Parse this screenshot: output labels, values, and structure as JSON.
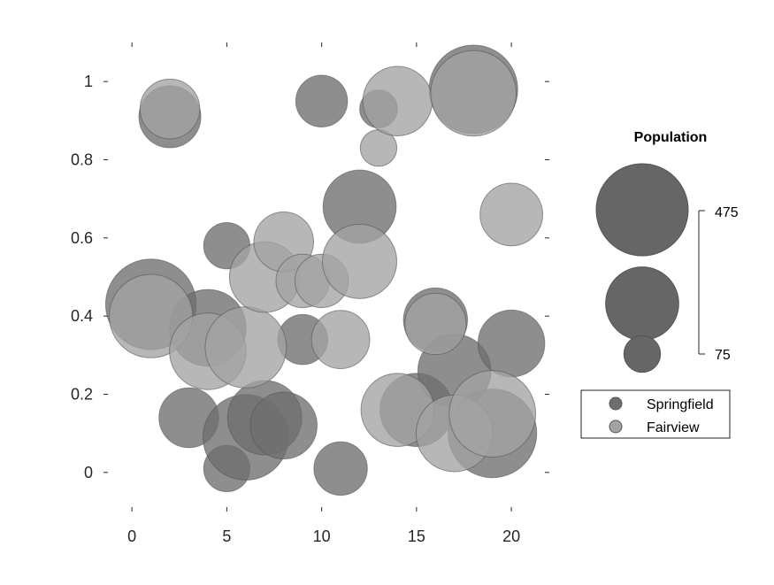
{
  "chart_data": {
    "type": "scatter",
    "subtype": "bubble",
    "title": "",
    "xlabel": "",
    "ylabel": "",
    "xlim": [
      -1.5,
      22
    ],
    "ylim": [
      -0.1,
      1.1
    ],
    "xticks": [
      0,
      5,
      10,
      15,
      20
    ],
    "yticks": [
      0,
      0.2,
      0.4,
      0.6,
      0.8,
      1
    ],
    "xtick_labels": [
      "0",
      "5",
      "10",
      "15",
      "20"
    ],
    "ytick_labels": [
      "0",
      "0.2",
      "0.4",
      "0.6",
      "0.8",
      "1"
    ],
    "grid": false,
    "size_legend": {
      "title": "Population",
      "max_label": "475",
      "min_label": "75",
      "max_value": 475,
      "min_value": 75,
      "sample_sizes": [
        475,
        300,
        75
      ]
    },
    "legend": {
      "position": "right",
      "entries": [
        "Springfield",
        "Fairview"
      ]
    },
    "series": [
      {
        "name": "Springfield",
        "color": "#6e6e6e",
        "points": [
          {
            "x": 1,
            "y": 0.43,
            "size": 460
          },
          {
            "x": 2,
            "y": 0.91,
            "size": 215
          },
          {
            "x": 3,
            "y": 0.14,
            "size": 200
          },
          {
            "x": 4,
            "y": 0.37,
            "size": 330
          },
          {
            "x": 5,
            "y": 0.58,
            "size": 120
          },
          {
            "x": 5,
            "y": 0.01,
            "size": 120
          },
          {
            "x": 6,
            "y": 0.09,
            "size": 410
          },
          {
            "x": 7,
            "y": 0.14,
            "size": 310
          },
          {
            "x": 8,
            "y": 0.12,
            "size": 250
          },
          {
            "x": 9,
            "y": 0.34,
            "size": 140
          },
          {
            "x": 10,
            "y": 0.95,
            "size": 150
          },
          {
            "x": 11,
            "y": 0.01,
            "size": 160
          },
          {
            "x": 12,
            "y": 0.68,
            "size": 300
          },
          {
            "x": 13,
            "y": 0.93,
            "size": 80
          },
          {
            "x": 15,
            "y": 0.16,
            "size": 300
          },
          {
            "x": 16,
            "y": 0.39,
            "size": 230
          },
          {
            "x": 17,
            "y": 0.26,
            "size": 300
          },
          {
            "x": 18,
            "y": 0.98,
            "size": 440
          },
          {
            "x": 19,
            "y": 0.1,
            "size": 440
          },
          {
            "x": 20,
            "y": 0.33,
            "size": 250
          }
        ]
      },
      {
        "name": "Fairview",
        "color": "#a3a3a3",
        "points": [
          {
            "x": 1,
            "y": 0.4,
            "size": 390
          },
          {
            "x": 2,
            "y": 0.93,
            "size": 200
          },
          {
            "x": 4,
            "y": 0.31,
            "size": 330
          },
          {
            "x": 6,
            "y": 0.32,
            "size": 370
          },
          {
            "x": 7,
            "y": 0.5,
            "size": 280
          },
          {
            "x": 8,
            "y": 0.59,
            "size": 200
          },
          {
            "x": 9,
            "y": 0.49,
            "size": 160
          },
          {
            "x": 10,
            "y": 0.49,
            "size": 160
          },
          {
            "x": 11,
            "y": 0.34,
            "size": 190
          },
          {
            "x": 12,
            "y": 0.54,
            "size": 310
          },
          {
            "x": 13,
            "y": 0.83,
            "size": 75
          },
          {
            "x": 14,
            "y": 0.95,
            "size": 270
          },
          {
            "x": 14,
            "y": 0.16,
            "size": 300
          },
          {
            "x": 16,
            "y": 0.38,
            "size": 210
          },
          {
            "x": 17,
            "y": 0.1,
            "size": 330
          },
          {
            "x": 18,
            "y": 0.97,
            "size": 410
          },
          {
            "x": 19,
            "y": 0.15,
            "size": 420
          },
          {
            "x": 20,
            "y": 0.66,
            "size": 220
          }
        ]
      }
    ]
  }
}
